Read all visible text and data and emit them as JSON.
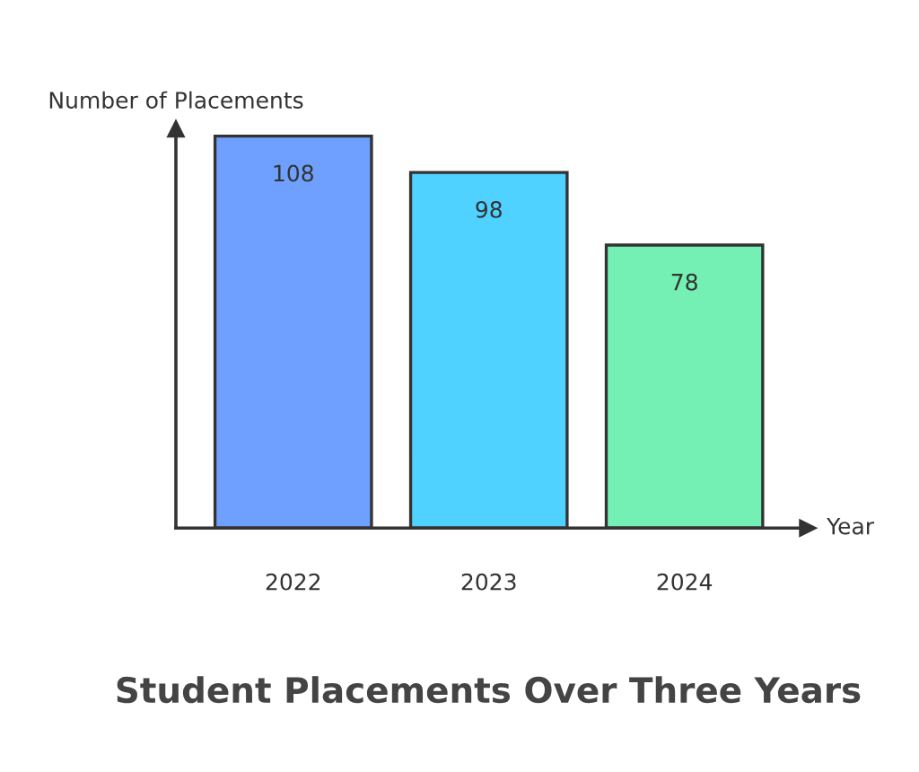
{
  "chart_data": {
    "type": "bar",
    "title": "Student Placements Over Three Years",
    "xlabel": "Year",
    "ylabel": "Number of Placements",
    "categories": [
      "2022",
      "2023",
      "2024"
    ],
    "values": [
      108,
      98,
      78
    ],
    "colors": [
      "#6fa0ff",
      "#4fd2ff",
      "#74f0b4"
    ],
    "ylim": [
      0,
      110
    ],
    "data_labels": true,
    "tick_labels": "x",
    "grid": false,
    "legend": false
  }
}
